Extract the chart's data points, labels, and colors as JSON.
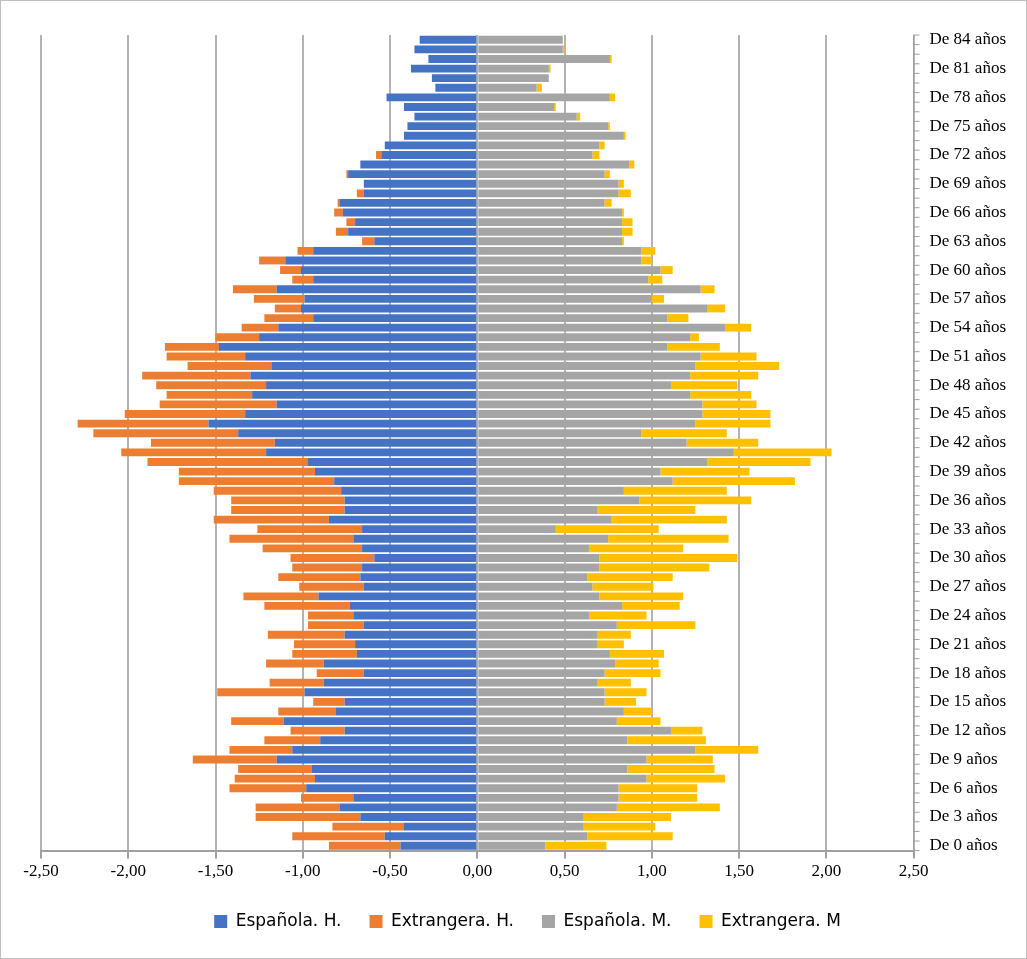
{
  "chart_data": {
    "type": "bar",
    "orientation": "horizontal",
    "stacked": true,
    "categories": [
      "De 84 años",
      null,
      null,
      "De 81 años",
      null,
      null,
      "De 78 años",
      null,
      null,
      "De 75 años",
      null,
      null,
      "De 72 años",
      null,
      null,
      "De 69 años",
      null,
      null,
      "De 66 años",
      null,
      null,
      "De 63 años",
      null,
      null,
      "De 60 años",
      null,
      null,
      "De 57 años",
      null,
      null,
      "De 54 años",
      null,
      null,
      "De 51 años",
      null,
      null,
      "De 48 años",
      null,
      null,
      "De 45 años",
      null,
      null,
      "De 42 años",
      null,
      null,
      "De 39 años",
      null,
      null,
      "De 36 años",
      null,
      null,
      "De 33 años",
      null,
      null,
      "De 30 años",
      null,
      null,
      "De 27 años",
      null,
      null,
      "De 24 años",
      null,
      null,
      "De 21 años",
      null,
      null,
      "De 18 años",
      null,
      null,
      "De 15 años",
      null,
      null,
      "De 12 años",
      null,
      null,
      "De 9 años",
      null,
      null,
      "De 6 años",
      null,
      null,
      "De 3 años",
      null,
      null,
      "De 0 años"
    ],
    "series": [
      {
        "name": "Española. H.",
        "color": "#4472c4",
        "values": [
          -0.33,
          -0.36,
          -0.28,
          -0.38,
          -0.26,
          -0.24,
          -0.52,
          -0.42,
          -0.36,
          -0.4,
          -0.42,
          -0.53,
          -0.55,
          -0.67,
          -0.74,
          -0.65,
          -0.65,
          -0.79,
          -0.77,
          -0.7,
          -0.74,
          -0.59,
          -0.94,
          -1.1,
          -1.01,
          -0.94,
          -1.15,
          -0.99,
          -1.01,
          -0.94,
          -1.14,
          -1.25,
          -1.48,
          -1.33,
          -1.18,
          -1.3,
          -1.21,
          -1.29,
          -1.15,
          -1.33,
          -1.54,
          -1.37,
          -1.16,
          -1.21,
          -0.97,
          -0.93,
          -0.82,
          -0.78,
          -0.76,
          -0.76,
          -0.85,
          -0.66,
          -0.71,
          -0.66,
          -0.59,
          -0.66,
          -0.67,
          -0.65,
          -0.91,
          -0.73,
          -0.71,
          -0.65,
          -0.76,
          -0.7,
          -0.69,
          -0.88,
          -0.65,
          -0.88,
          -0.99,
          -0.76,
          -0.81,
          -1.11,
          -0.76,
          -0.9,
          -1.06,
          -1.15,
          -0.95,
          -0.93,
          -0.98,
          -0.71,
          -0.79,
          -0.67,
          -0.42,
          -0.53,
          -0.44
        ]
      },
      {
        "name": "Extrangera. H.",
        "color": "#ed7d31",
        "values": [
          0,
          0,
          0,
          0,
          0,
          0,
          0,
          0,
          0,
          0,
          0,
          0,
          -0.03,
          0,
          -0.01,
          0,
          -0.04,
          -0.01,
          -0.05,
          -0.05,
          -0.07,
          -0.07,
          -0.09,
          -0.15,
          -0.12,
          -0.12,
          -0.25,
          -0.29,
          -0.15,
          -0.28,
          -0.21,
          -0.25,
          -0.31,
          -0.45,
          -0.48,
          -0.62,
          -0.63,
          -0.49,
          -0.67,
          -0.69,
          -0.75,
          -0.83,
          -0.71,
          -0.83,
          -0.92,
          -0.78,
          -0.89,
          -0.73,
          -0.65,
          -0.65,
          -0.66,
          -0.6,
          -0.71,
          -0.57,
          -0.48,
          -0.4,
          -0.47,
          -0.37,
          -0.43,
          -0.49,
          -0.26,
          -0.32,
          -0.44,
          -0.35,
          -0.37,
          -0.33,
          -0.27,
          -0.31,
          -0.5,
          -0.18,
          -0.33,
          -0.3,
          -0.31,
          -0.32,
          -0.36,
          -0.48,
          -0.42,
          -0.46,
          -0.44,
          -0.3,
          -0.48,
          -0.6,
          -0.41,
          -0.53,
          -0.41
        ]
      },
      {
        "name": "Española. M.",
        "color": "#a5a5a5",
        "values": [
          0.49,
          0.49,
          0.76,
          0.41,
          0.41,
          0.34,
          0.76,
          0.44,
          0.57,
          0.75,
          0.84,
          0.7,
          0.66,
          0.87,
          0.73,
          0.81,
          0.81,
          0.73,
          0.83,
          0.83,
          0.83,
          0.83,
          0.94,
          0.94,
          1.05,
          0.98,
          1.28,
          1.0,
          1.32,
          1.09,
          1.42,
          1.22,
          1.09,
          1.28,
          1.25,
          1.22,
          1.11,
          1.22,
          1.29,
          1.29,
          1.25,
          0.94,
          1.2,
          1.47,
          1.32,
          1.05,
          1.12,
          0.84,
          0.93,
          0.69,
          0.77,
          0.45,
          0.75,
          0.64,
          0.7,
          0.7,
          0.63,
          0.66,
          0.7,
          0.83,
          0.64,
          0.8,
          0.69,
          0.69,
          0.76,
          0.79,
          0.73,
          0.69,
          0.73,
          0.73,
          0.84,
          0.8,
          1.11,
          0.86,
          1.25,
          0.97,
          0.86,
          0.97,
          0.81,
          0.81,
          0.8,
          0.61,
          0.61,
          0.63,
          0.39
        ]
      },
      {
        "name": "Extrangera. M",
        "color": "#ffc000",
        "values": [
          0,
          0.01,
          0.01,
          0.01,
          0,
          0.03,
          0.03,
          0.01,
          0.02,
          0.01,
          0.01,
          0.03,
          0.04,
          0.03,
          0.03,
          0.03,
          0.07,
          0.04,
          0.01,
          0.06,
          0.06,
          0.01,
          0.08,
          0.06,
          0.07,
          0.08,
          0.08,
          0.07,
          0.1,
          0.12,
          0.15,
          0.05,
          0.3,
          0.32,
          0.48,
          0.39,
          0.38,
          0.35,
          0.31,
          0.39,
          0.43,
          0.49,
          0.41,
          0.56,
          0.59,
          0.51,
          0.7,
          0.59,
          0.64,
          0.56,
          0.66,
          0.59,
          0.69,
          0.54,
          0.79,
          0.63,
          0.49,
          0.35,
          0.48,
          0.33,
          0.33,
          0.45,
          0.19,
          0.15,
          0.31,
          0.25,
          0.32,
          0.19,
          0.24,
          0.18,
          0.16,
          0.25,
          0.18,
          0.45,
          0.36,
          0.38,
          0.5,
          0.45,
          0.45,
          0.45,
          0.59,
          0.5,
          0.41,
          0.49,
          0.35
        ]
      }
    ],
    "xlim": [
      -2.5,
      2.5
    ],
    "xticks": [
      {
        "value": -2.5,
        "label": "-2,50"
      },
      {
        "value": -2,
        "label": "-2,00"
      },
      {
        "value": -1.5,
        "label": "-1,50"
      },
      {
        "value": -1,
        "label": "-1,00"
      },
      {
        "value": -0.5,
        "label": "-0,50"
      },
      {
        "value": 0,
        "label": "0,00"
      },
      {
        "value": 0.5,
        "label": "0,50"
      },
      {
        "value": 1,
        "label": "1,00"
      },
      {
        "value": 1.5,
        "label": "1,50"
      },
      {
        "value": 2,
        "label": "2,00"
      },
      {
        "value": 2.5,
        "label": "2,50"
      }
    ],
    "grid": "x",
    "legend": "bottom"
  }
}
